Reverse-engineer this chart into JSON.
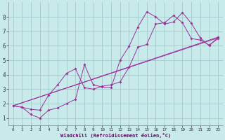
{
  "title": "",
  "xlabel": "Windchill (Refroidissement éolien,°C)",
  "ylabel": "",
  "bg_color": "#c8eaea",
  "line_color": "#993399",
  "grid_color": "#a0cccc",
  "xlim": [
    -0.5,
    23.5
  ],
  "ylim": [
    0.5,
    9.0
  ],
  "xticks": [
    0,
    1,
    2,
    3,
    4,
    5,
    6,
    7,
    8,
    9,
    10,
    11,
    12,
    13,
    14,
    15,
    16,
    17,
    18,
    19,
    20,
    21,
    22,
    23
  ],
  "yticks": [
    1,
    2,
    3,
    4,
    5,
    6,
    7,
    8
  ],
  "lines": [
    {
      "x": [
        0,
        1,
        2,
        3,
        4,
        5,
        6,
        7,
        8,
        9,
        10,
        11,
        12,
        13,
        14,
        15,
        16,
        17,
        18,
        19,
        20,
        21,
        22,
        23
      ],
      "y": [
        1.85,
        1.75,
        1.25,
        1.0,
        1.55,
        1.7,
        2.0,
        2.3,
        4.7,
        3.3,
        3.15,
        3.1,
        5.0,
        5.95,
        7.3,
        8.35,
        8.0,
        7.5,
        7.65,
        8.3,
        7.55,
        6.55,
        6.0,
        6.6
      ],
      "marker": true
    },
    {
      "x": [
        0,
        1,
        2,
        3,
        4,
        5,
        6,
        7,
        8,
        9,
        10,
        11,
        12,
        13,
        14,
        15,
        16,
        17,
        18,
        19,
        20,
        21,
        22,
        23
      ],
      "y": [
        1.85,
        1.75,
        1.6,
        1.55,
        2.6,
        3.3,
        4.1,
        4.4,
        3.1,
        3.0,
        3.2,
        3.3,
        3.5,
        4.5,
        5.9,
        6.1,
        7.5,
        7.6,
        8.1,
        7.6,
        6.5,
        6.4,
        6.05,
        6.5
      ],
      "marker": true
    },
    {
      "x": [
        0,
        23
      ],
      "y": [
        1.85,
        6.55
      ],
      "marker": false
    },
    {
      "x": [
        0,
        23
      ],
      "y": [
        1.85,
        6.6
      ],
      "marker": false
    }
  ]
}
